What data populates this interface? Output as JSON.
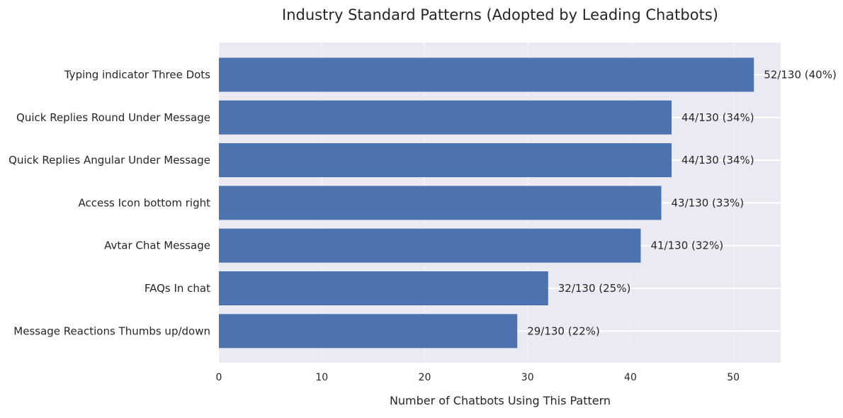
{
  "chart_data": {
    "type": "bar",
    "orientation": "horizontal",
    "title": "Industry Standard Patterns (Adopted by Leading Chatbots)",
    "xlabel": "Number of Chatbots Using This Pattern",
    "ylabel": "",
    "xlim": [
      0,
      54.6
    ],
    "xticks": [
      0,
      10,
      20,
      30,
      40,
      50
    ],
    "grid": true,
    "colors": {
      "bar": "#4c72b0",
      "plot_background": "#eaeaf2",
      "grid": "#ffffff",
      "text": "#262626"
    },
    "categories": [
      "Typing indicator Three Dots",
      "Quick Replies Round Under Message",
      "Quick Replies Angular Under Message",
      "Access Icon bottom right",
      "Avtar Chat Message",
      "FAQs In chat",
      "Message Reactions Thumbs up/down"
    ],
    "values": [
      52,
      44,
      44,
      43,
      41,
      32,
      29
    ],
    "data_labels": [
      "52/130 (40%)",
      "44/130 (34%)",
      "44/130 (34%)",
      "43/130 (33%)",
      "41/130 (32%)",
      "32/130 (25%)",
      "29/130 (22%)"
    ]
  }
}
